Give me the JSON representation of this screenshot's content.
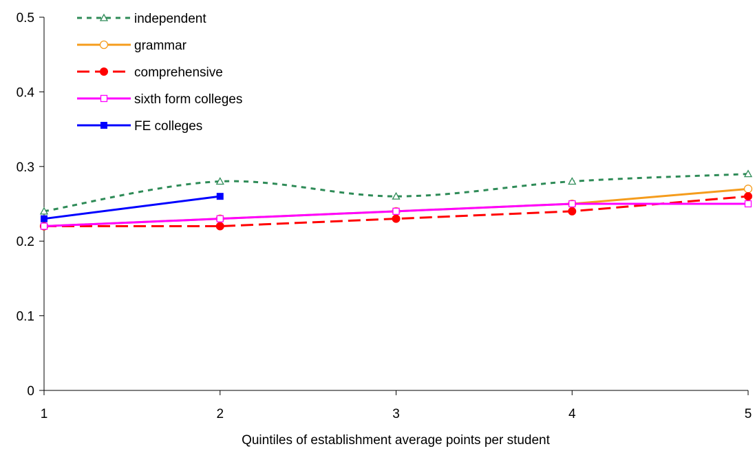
{
  "chart_data": {
    "type": "line",
    "title": "",
    "xlabel": "Quintiles of establishment average points per student",
    "ylabel": "",
    "x": [
      1,
      2,
      3,
      4,
      5
    ],
    "xlim": [
      1,
      5
    ],
    "ylim": [
      0,
      0.5
    ],
    "x_ticks": [
      "1",
      "2",
      "3",
      "4",
      "5"
    ],
    "y_ticks": [
      "0",
      "0.1",
      "0.2",
      "0.3",
      "0.4",
      "0.5"
    ],
    "grid": false,
    "legend_position": "top-left",
    "series": [
      {
        "name": "independent",
        "color": "#2e8b57",
        "line": "dotted",
        "marker": "triangle-open",
        "smooth": true,
        "x": [
          1,
          2,
          3,
          4,
          5
        ],
        "values": [
          0.24,
          0.28,
          0.26,
          0.28,
          0.29
        ]
      },
      {
        "name": "grammar",
        "color": "#f59c1c",
        "line": "solid",
        "marker": "circle-open",
        "x": [
          1,
          2,
          3,
          4,
          5
        ],
        "values": [
          0.22,
          0.23,
          0.24,
          0.25,
          0.27
        ]
      },
      {
        "name": "comprehensive",
        "color": "#ff0000",
        "line": "dashed",
        "marker": "circle-filled",
        "x": [
          1,
          2,
          3,
          4,
          5
        ],
        "values": [
          0.22,
          0.22,
          0.23,
          0.24,
          0.26
        ]
      },
      {
        "name": "sixth form colleges",
        "color": "#ff00ff",
        "line": "solid",
        "marker": "square-open",
        "x": [
          1,
          2,
          3,
          4,
          5
        ],
        "values": [
          0.22,
          0.23,
          0.24,
          0.25,
          0.25
        ]
      },
      {
        "name": "FE colleges",
        "color": "#0000ff",
        "line": "solid",
        "marker": "square-filled",
        "x": [
          1,
          2
        ],
        "values": [
          0.23,
          0.26
        ]
      }
    ]
  }
}
